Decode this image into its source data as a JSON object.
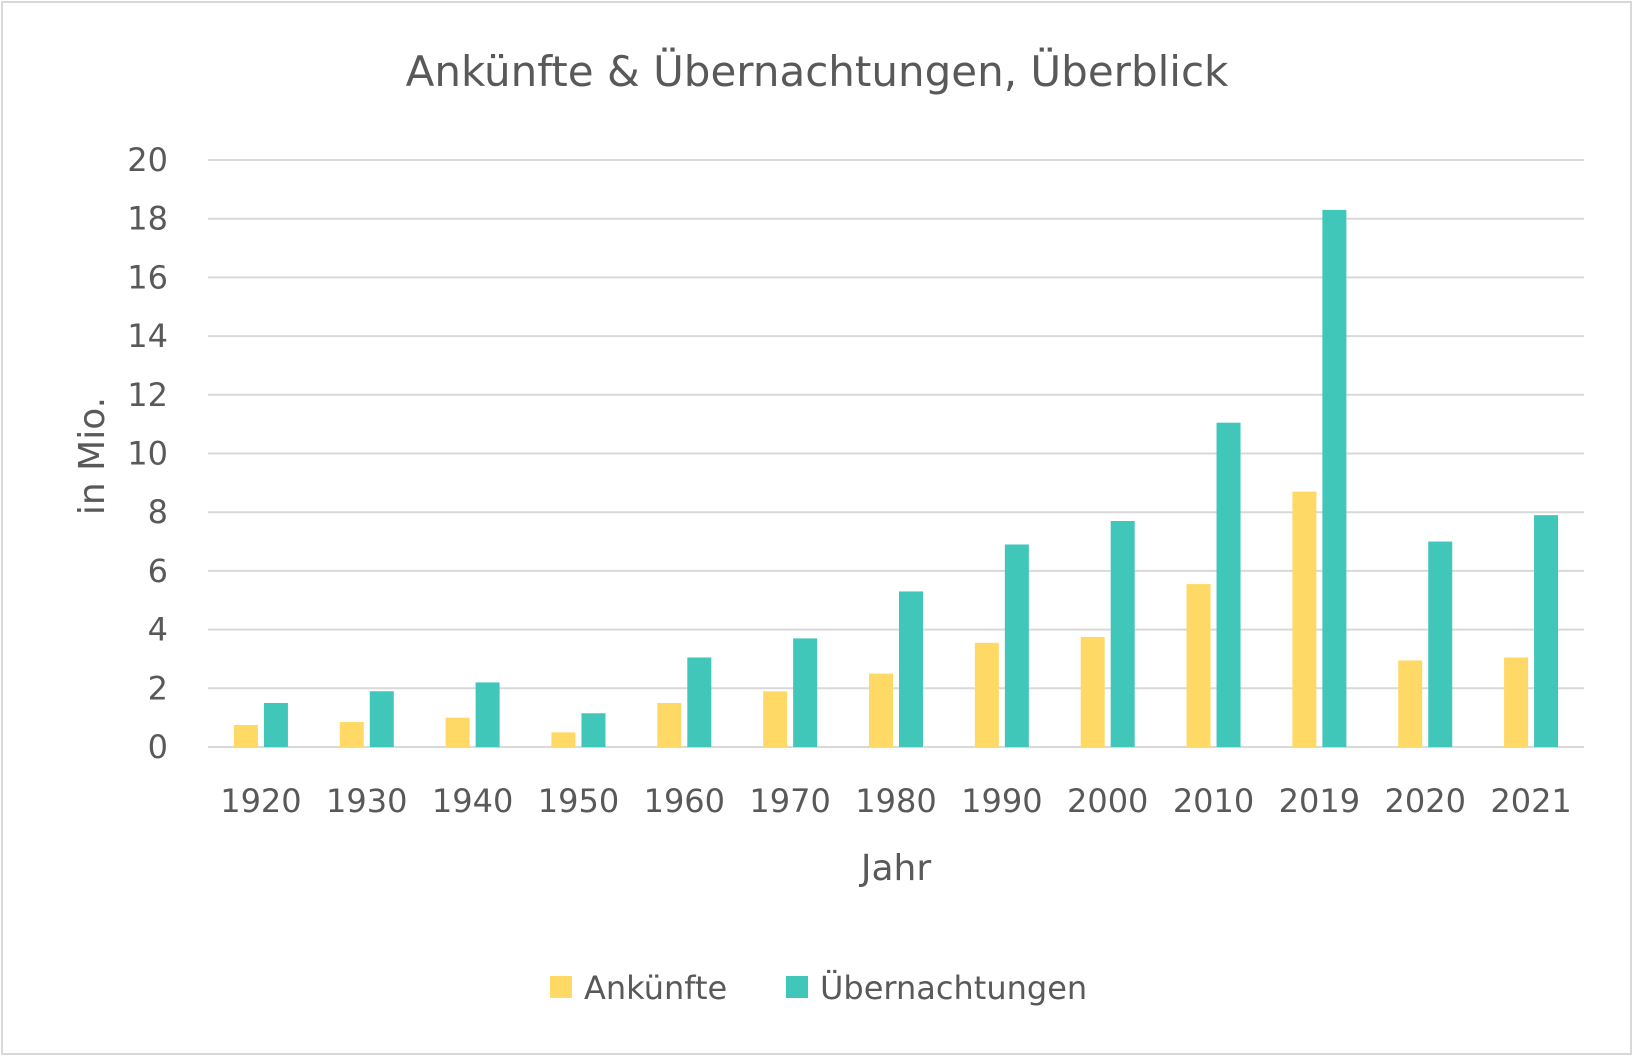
{
  "chart_data": {
    "type": "bar",
    "title": "Ankünfte & Übernachtungen, Überblick",
    "xlabel": "Jahr",
    "ylabel": "in Mio.",
    "ylim": [
      0,
      20
    ],
    "yticks": [
      0,
      2,
      4,
      6,
      8,
      10,
      12,
      14,
      16,
      18,
      20
    ],
    "grid": true,
    "legend_position": "bottom",
    "categories": [
      "1920",
      "1930",
      "1940",
      "1950",
      "1960",
      "1970",
      "1980",
      "1990",
      "2000",
      "2010",
      "2019",
      "2020",
      "2021"
    ],
    "series": [
      {
        "name": "Ankünfte",
        "color": "#FFD966",
        "values": [
          0.75,
          0.85,
          1.0,
          0.5,
          1.5,
          1.9,
          2.5,
          3.55,
          3.75,
          5.55,
          8.7,
          2.95,
          3.05
        ]
      },
      {
        "name": "Übernachtungen",
        "color": "#41C6BA",
        "values": [
          1.5,
          1.9,
          2.2,
          1.15,
          3.05,
          3.7,
          5.3,
          6.9,
          7.7,
          11.05,
          18.3,
          7.0,
          7.9
        ]
      }
    ]
  }
}
